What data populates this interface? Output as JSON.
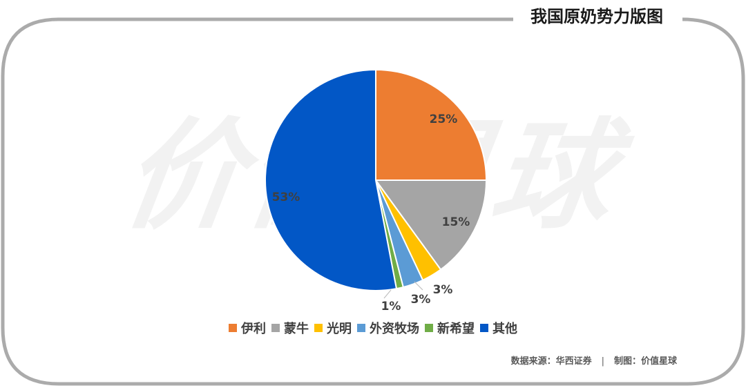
{
  "header": {
    "title": "我国原奶势力版图"
  },
  "watermark": {
    "text": "价值星球"
  },
  "footer": {
    "source": "数据来源：华西证券",
    "separator": "|",
    "maker": "制图：价值星球"
  },
  "legend": [
    {
      "label": "伊利",
      "color": "#ED7D31"
    },
    {
      "label": "蒙牛",
      "color": "#A5A5A5"
    },
    {
      "label": "光明",
      "color": "#FFC000"
    },
    {
      "label": "外资牧场",
      "color": "#5B9BD5"
    },
    {
      "label": "新希望",
      "color": "#70AD47"
    },
    {
      "label": "其他",
      "color": "#0257C6"
    }
  ],
  "labels": {
    "yili": "25%",
    "mengniu": "15%",
    "guangming": "3%",
    "waizi": "3%",
    "xinxiwang": "1%",
    "qita": "53%"
  },
  "chart_data": {
    "type": "pie",
    "title": "我国原奶势力版图",
    "categories": [
      "伊利",
      "蒙牛",
      "光明",
      "外资牧场",
      "新希望",
      "其他"
    ],
    "values": [
      25,
      15,
      3,
      3,
      1,
      53
    ],
    "unit": "%",
    "colors": [
      "#ED7D31",
      "#A5A5A5",
      "#FFC000",
      "#5B9BD5",
      "#70AD47",
      "#0257C6"
    ],
    "start_angle": "12 o'clock, clockwise",
    "legend_position": "bottom",
    "source": "华西证券"
  }
}
